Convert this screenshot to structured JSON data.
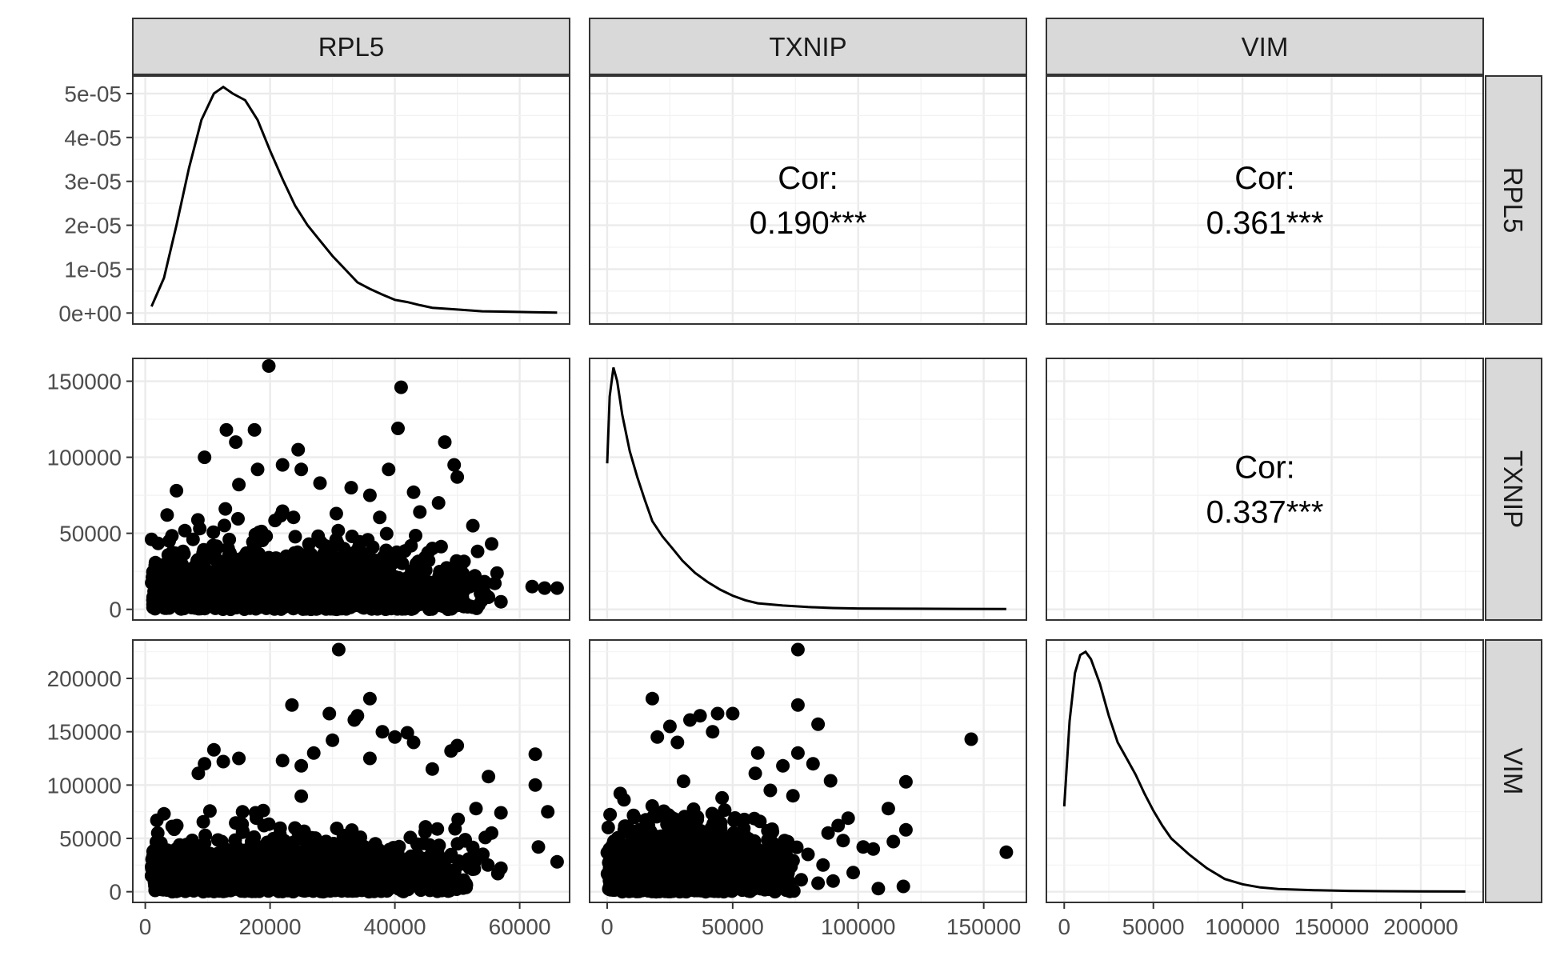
{
  "chart_data": {
    "type": "scatter",
    "variables": [
      "RPL5",
      "TXNIP",
      "VIM"
    ],
    "strips": {
      "top": [
        "RPL5",
        "TXNIP",
        "VIM"
      ],
      "right": [
        "RPL5",
        "TXNIP",
        "VIM"
      ]
    },
    "axes": {
      "x": [
        {
          "range": [
            -2000,
            68000
          ],
          "ticks": [
            "0",
            "20000",
            "40000",
            "60000"
          ],
          "tick_values": [
            0,
            20000,
            40000,
            60000
          ]
        },
        {
          "range": [
            -7000,
            167000
          ],
          "ticks": [
            "0",
            "50000",
            "100000",
            "150000"
          ],
          "tick_values": [
            0,
            50000,
            100000,
            150000
          ]
        },
        {
          "range": [
            -10000,
            235000
          ],
          "ticks": [
            "0",
            "50000",
            "100000",
            "150000",
            "200000"
          ],
          "tick_values": [
            0,
            50000,
            100000,
            150000,
            200000
          ]
        }
      ],
      "y": [
        {
          "range": [
            -2.5e-06,
            5.4e-05
          ],
          "ticks": [
            "0e+00",
            "1e-05",
            "2e-05",
            "3e-05",
            "4e-05",
            "5e-05"
          ],
          "tick_values": [
            0,
            1e-05,
            2e-05,
            3e-05,
            4e-05,
            5e-05
          ]
        },
        {
          "range": [
            -7000,
            165000
          ],
          "ticks": [
            "0",
            "50000",
            "100000",
            "150000"
          ],
          "tick_values": [
            0,
            50000,
            100000,
            150000
          ]
        },
        {
          "range": [
            -10000,
            236000
          ],
          "ticks": [
            "0",
            "50000",
            "100000",
            "150000",
            "200000"
          ],
          "tick_values": [
            0,
            50000,
            100000,
            150000,
            200000
          ]
        }
      ]
    },
    "density": {
      "RPL5": [
        [
          1000,
          1.5e-06
        ],
        [
          3000,
          8e-06
        ],
        [
          5000,
          2e-05
        ],
        [
          7000,
          3.3e-05
        ],
        [
          9000,
          4.4e-05
        ],
        [
          11000,
          5e-05
        ],
        [
          12500,
          5.15e-05
        ],
        [
          14000,
          5e-05
        ],
        [
          16000,
          4.85e-05
        ],
        [
          18000,
          4.4e-05
        ],
        [
          20000,
          3.7e-05
        ],
        [
          22000,
          3.05e-05
        ],
        [
          24000,
          2.45e-05
        ],
        [
          26000,
          2e-05
        ],
        [
          28000,
          1.65e-05
        ],
        [
          30000,
          1.3e-05
        ],
        [
          32000,
          1e-05
        ],
        [
          34000,
          7e-06
        ],
        [
          36000,
          5.5e-06
        ],
        [
          38000,
          4.2e-06
        ],
        [
          40000,
          3e-06
        ],
        [
          42000,
          2.5e-06
        ],
        [
          44000,
          1.8e-06
        ],
        [
          46000,
          1.2e-06
        ],
        [
          50000,
          8e-07
        ],
        [
          54000,
          4e-07
        ],
        [
          58000,
          3e-07
        ],
        [
          62000,
          2e-07
        ],
        [
          66000,
          1e-07
        ]
      ],
      "TXNIP": [
        [
          0,
          96000
        ],
        [
          1000,
          140000
        ],
        [
          2500,
          159000
        ],
        [
          4000,
          150000
        ],
        [
          6000,
          128000
        ],
        [
          9000,
          104000
        ],
        [
          12000,
          87000
        ],
        [
          15000,
          72000
        ],
        [
          18000,
          58000
        ],
        [
          22000,
          48000
        ],
        [
          26000,
          40000
        ],
        [
          30000,
          32000
        ],
        [
          35000,
          24000
        ],
        [
          40000,
          18000
        ],
        [
          45000,
          13000
        ],
        [
          50000,
          9000
        ],
        [
          55000,
          6000
        ],
        [
          60000,
          4000
        ],
        [
          70000,
          2500
        ],
        [
          80000,
          1500
        ],
        [
          90000,
          900
        ],
        [
          100000,
          600
        ],
        [
          120000,
          400
        ],
        [
          140000,
          300
        ],
        [
          159000,
          200
        ]
      ],
      "VIM": [
        [
          0,
          80000
        ],
        [
          3000,
          160000
        ],
        [
          6000,
          205000
        ],
        [
          9000,
          222000
        ],
        [
          12000,
          225000
        ],
        [
          15000,
          218000
        ],
        [
          20000,
          195000
        ],
        [
          25000,
          165000
        ],
        [
          30000,
          140000
        ],
        [
          35000,
          125000
        ],
        [
          40000,
          110000
        ],
        [
          45000,
          92000
        ],
        [
          50000,
          76000
        ],
        [
          55000,
          62000
        ],
        [
          60000,
          50000
        ],
        [
          70000,
          35000
        ],
        [
          80000,
          22000
        ],
        [
          90000,
          12000
        ],
        [
          100000,
          7000
        ],
        [
          110000,
          4000
        ],
        [
          120000,
          2500
        ],
        [
          140000,
          1500
        ],
        [
          160000,
          800
        ],
        [
          180000,
          500
        ],
        [
          200000,
          300
        ],
        [
          225000,
          200
        ]
      ]
    },
    "scatter": {
      "TXNIP_vs_RPL5": {
        "bulk_x_range": [
          1000,
          57000
        ],
        "bulk_y_max": 80000,
        "outliers": [
          [
            19800,
            160000
          ],
          [
            41000,
            146000
          ],
          [
            40500,
            119000
          ],
          [
            13000,
            118000
          ],
          [
            17500,
            118000
          ],
          [
            14500,
            110000
          ],
          [
            48000,
            110000
          ],
          [
            24500,
            105000
          ],
          [
            9500,
            100000
          ],
          [
            49500,
            95000
          ],
          [
            50000,
            87000
          ],
          [
            22000,
            95000
          ],
          [
            18000,
            92000
          ],
          [
            25000,
            92000
          ],
          [
            39000,
            92000
          ],
          [
            43000,
            77000
          ],
          [
            28000,
            83000
          ],
          [
            33000,
            80000
          ],
          [
            15000,
            82000
          ],
          [
            52500,
            55000
          ],
          [
            55500,
            43000
          ],
          [
            62000,
            15000
          ],
          [
            64000,
            14000
          ],
          [
            66000,
            14000
          ],
          [
            53000,
            16000
          ],
          [
            55000,
            8000
          ],
          [
            57000,
            5000
          ],
          [
            1000,
            46000
          ],
          [
            3500,
            62000
          ],
          [
            5000,
            78000
          ],
          [
            47000,
            70000
          ],
          [
            44000,
            64000
          ],
          [
            36000,
            75000
          ]
        ]
      },
      "VIM_vs_RPL5": {
        "bulk_x_range": [
          1000,
          56000
        ],
        "bulk_y_max": 100000,
        "outliers": [
          [
            31000,
            227000
          ],
          [
            36000,
            181000
          ],
          [
            23500,
            175000
          ],
          [
            29500,
            167000
          ],
          [
            34000,
            165000
          ],
          [
            42000,
            149000
          ],
          [
            38000,
            150000
          ],
          [
            33500,
            161000
          ],
          [
            30000,
            142000
          ],
          [
            43000,
            140000
          ],
          [
            40000,
            145000
          ],
          [
            50000,
            137000
          ],
          [
            49000,
            132000
          ],
          [
            62500,
            129000
          ],
          [
            11000,
            133000
          ],
          [
            12500,
            122000
          ],
          [
            9500,
            120000
          ],
          [
            15000,
            125000
          ],
          [
            8500,
            111000
          ],
          [
            22000,
            123000
          ],
          [
            27000,
            130000
          ],
          [
            25000,
            118000
          ],
          [
            62500,
            100000
          ],
          [
            55000,
            108000
          ],
          [
            64500,
            75000
          ],
          [
            66000,
            28000
          ],
          [
            63000,
            42000
          ],
          [
            57000,
            74000
          ],
          [
            53000,
            78000
          ],
          [
            55500,
            55000
          ],
          [
            57000,
            22000
          ],
          [
            56500,
            17000
          ],
          [
            48500,
            20000
          ],
          [
            3000,
            73000
          ],
          [
            2000,
            55000
          ],
          [
            1000,
            15000
          ],
          [
            46000,
            115000
          ],
          [
            36000,
            125000
          ]
        ]
      },
      "VIM_vs_TXNIP": {
        "bulk_x_range": [
          0,
          80000
        ],
        "bulk_y_max": 120000,
        "outliers": [
          [
            76000,
            227000
          ],
          [
            18000,
            181000
          ],
          [
            76000,
            175000
          ],
          [
            44000,
            167000
          ],
          [
            37000,
            165000
          ],
          [
            50000,
            167000
          ],
          [
            33000,
            161000
          ],
          [
            84000,
            157000
          ],
          [
            145000,
            143000
          ],
          [
            20000,
            145000
          ],
          [
            28000,
            140000
          ],
          [
            76000,
            130000
          ],
          [
            89000,
            104000
          ],
          [
            119000,
            103000
          ],
          [
            82000,
            120000
          ],
          [
            70000,
            118000
          ],
          [
            59000,
            111000
          ],
          [
            112000,
            78000
          ],
          [
            96000,
            69000
          ],
          [
            92000,
            62000
          ],
          [
            88000,
            55000
          ],
          [
            94000,
            48000
          ],
          [
            114000,
            47000
          ],
          [
            119000,
            58000
          ],
          [
            106000,
            40000
          ],
          [
            102000,
            42000
          ],
          [
            159000,
            37000
          ],
          [
            108000,
            3000
          ],
          [
            118000,
            5000
          ],
          [
            84000,
            8000
          ],
          [
            90000,
            10000
          ],
          [
            98000,
            18000
          ],
          [
            86000,
            25000
          ],
          [
            80000,
            35000
          ],
          [
            74000,
            90000
          ],
          [
            65000,
            95000
          ],
          [
            60000,
            130000
          ],
          [
            42000,
            150000
          ],
          [
            25000,
            155000
          ]
        ]
      }
    },
    "correlations": {
      "TXNIP_RPL5": [
        "Cor:",
        "0.190***"
      ],
      "VIM_RPL5": [
        "Cor:",
        "0.361***"
      ],
      "VIM_TXNIP": [
        "Cor:",
        "0.337***"
      ]
    },
    "grid": true
  }
}
